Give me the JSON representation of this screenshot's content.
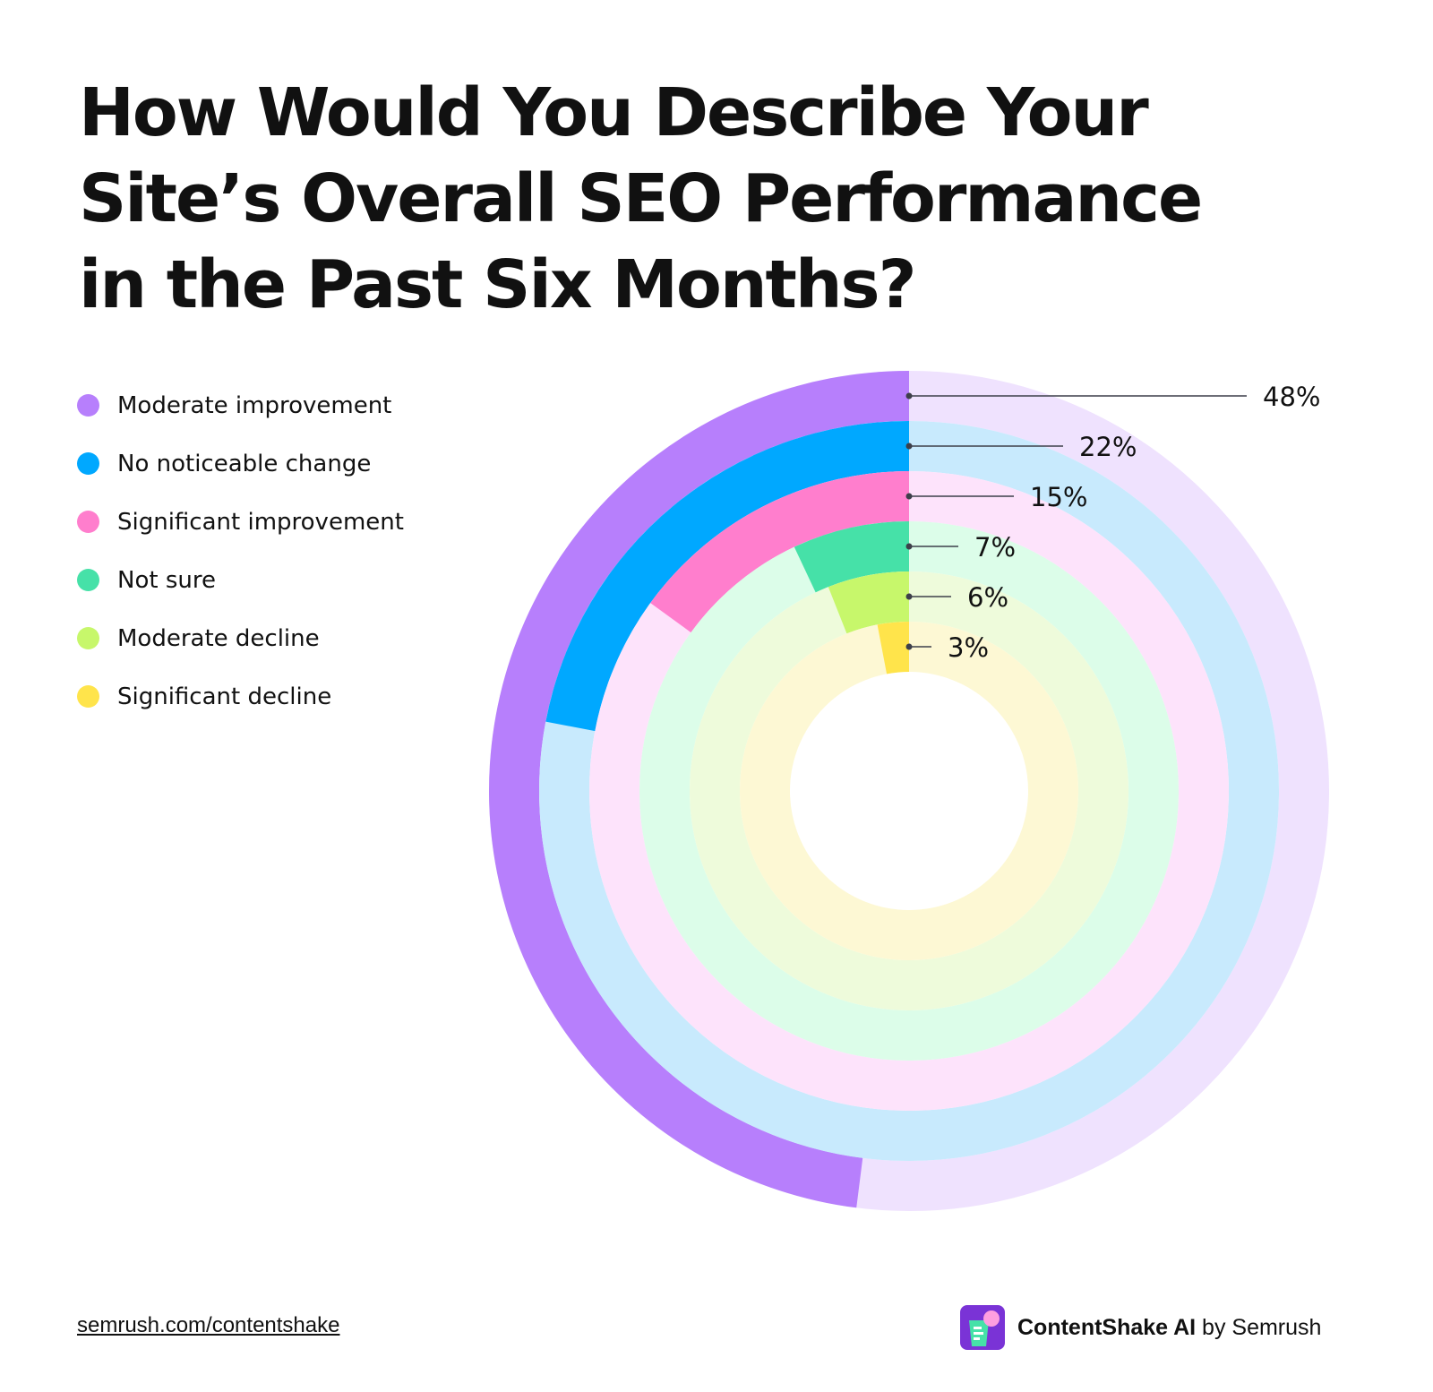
{
  "title": "How Would You Describe Your Site’s Overall SEO Performance in the Past Six Months?",
  "title_lines": [
    "How Would You Describe Your",
    "Site’s Overall SEO Performance",
    "in the Past Six Months?"
  ],
  "legend": [
    {
      "label": "Moderate improvement",
      "color": "#b77ffc"
    },
    {
      "label": "No noticeable change",
      "color": "#00a8ff"
    },
    {
      "label": "Significant improvement",
      "color": "#ff7ecd"
    },
    {
      "label": "Not sure",
      "color": "#46e1a8"
    },
    {
      "label": "Moderate decline",
      "color": "#c7f76b"
    },
    {
      "label": "Significant decline",
      "color": "#ffe44b"
    }
  ],
  "chart_data": {
    "type": "radial-bar",
    "title": "How Would You Describe Your Site’s Overall SEO Performance in the Past Six Months?",
    "categories": [
      "Moderate improvement",
      "No noticeable change",
      "Significant improvement",
      "Not sure",
      "Moderate decline",
      "Significant decline"
    ],
    "values": [
      48,
      22,
      15,
      7,
      6,
      3
    ],
    "labels": [
      "48%",
      "22%",
      "15%",
      "7%",
      "6%",
      "3%"
    ],
    "colors": [
      "#b77ffc",
      "#00a8ff",
      "#ff7ecd",
      "#46e1a8",
      "#c7f76b",
      "#ffe44b"
    ],
    "track_colors": [
      "#efe2fe",
      "#c8eafd",
      "#fde3fb",
      "#dcfde9",
      "#eefbdb",
      "#fdf8d4"
    ],
    "unit": "%",
    "legend_position": "left",
    "direction": "counter-clockwise from top"
  },
  "footer": {
    "link": "semrush.com/contentshake",
    "brand_name": "ContentShake AI",
    "brand_suffix": " by Semrush"
  }
}
